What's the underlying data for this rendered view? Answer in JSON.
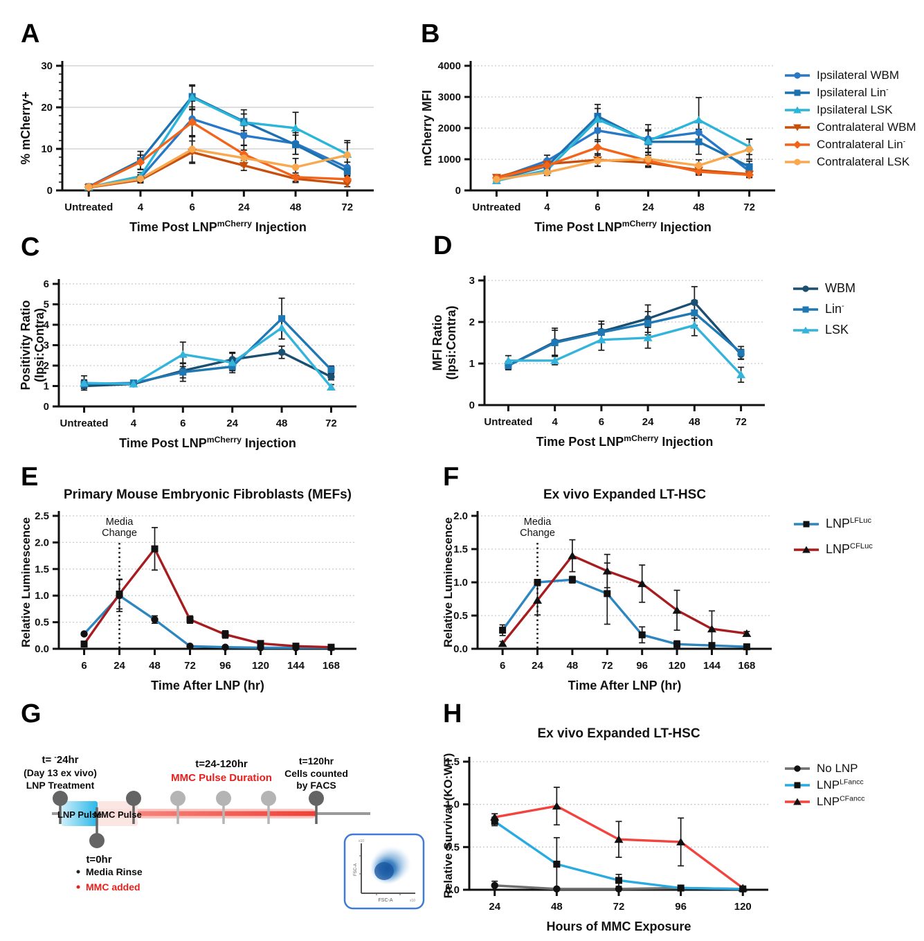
{
  "panels": [
    {
      "id": "A",
      "letter": "A"
    },
    {
      "id": "B",
      "letter": "B"
    },
    {
      "id": "C",
      "letter": "C"
    },
    {
      "id": "D",
      "letter": "D"
    },
    {
      "id": "E",
      "letter": "E"
    },
    {
      "id": "F",
      "letter": "F"
    },
    {
      "id": "G",
      "letter": "G"
    },
    {
      "id": "H",
      "letter": "H"
    }
  ],
  "chart_data": [
    {
      "id": "A",
      "type": "line",
      "title": null,
      "categories": [
        "Untreated",
        "4",
        "6",
        "24",
        "48",
        "72"
      ],
      "xlabel": [
        {
          "t": "Time Post LNP"
        },
        {
          "t": "mCherry",
          "sup": true
        },
        {
          "t": " Injection"
        }
      ],
      "ylabel": [
        "% mCherry+"
      ],
      "ylim": [
        0,
        30
      ],
      "yticks": [
        0,
        10,
        20,
        30
      ],
      "ytick_format": "int",
      "grid": "solid",
      "minor_step": 2,
      "legend": false,
      "series": [
        {
          "name": [
            {
              "t": "Ipsilateral WBM"
            }
          ],
          "color": "#2878C8",
          "marker": "circle",
          "values": [
            0.8,
            3.0,
            17.2,
            13.2,
            11.3,
            5.5
          ],
          "errors": [
            0.4,
            0.8,
            4.3,
            2.4,
            2.6,
            1.3
          ]
        },
        {
          "name": [
            {
              "t": "Ipsilateral Lin"
            },
            {
              "t": "-",
              "sup": true
            }
          ],
          "color": "#1C72B0",
          "marker": "square",
          "values": [
            0.9,
            7.2,
            22.6,
            16.6,
            11.0,
            4.6
          ],
          "errors": [
            0.3,
            2.2,
            2.5,
            2.8,
            2.3,
            1.2
          ]
        },
        {
          "name": [
            {
              "t": "Ipsilateral LSK"
            }
          ],
          "color": "#2BB5D9",
          "marker": "triangle",
          "values": [
            0.8,
            3.4,
            22.4,
            16.4,
            15.0,
            8.7
          ],
          "errors": [
            0.3,
            0.9,
            3.0,
            2.0,
            3.8,
            3.3
          ]
        },
        {
          "name": [
            {
              "t": "Contralateral WBM"
            }
          ],
          "color": "#C8500D",
          "marker": "triangle-down",
          "values": [
            0.7,
            2.5,
            9.2,
            6.0,
            2.8,
            1.6
          ],
          "errors": [
            0.3,
            0.7,
            2.7,
            1.2,
            0.9,
            0.7
          ]
        },
        {
          "name": [
            {
              "t": "Contralateral Lin"
            },
            {
              "t": "-",
              "sup": true
            }
          ],
          "color": "#F26419",
          "marker": "diamond",
          "values": [
            0.8,
            6.8,
            16.4,
            8.7,
            3.2,
            2.7
          ],
          "errors": [
            0.3,
            1.7,
            3.2,
            2.2,
            1.0,
            0.9
          ]
        },
        {
          "name": [
            {
              "t": "Contralateral LSK"
            }
          ],
          "color": "#F8A84E",
          "marker": "circle",
          "values": [
            0.8,
            2.8,
            9.9,
            7.8,
            5.6,
            8.5
          ],
          "errors": [
            0.3,
            0.8,
            3.1,
            1.9,
            2.1,
            3.0
          ]
        }
      ]
    },
    {
      "id": "B",
      "type": "line",
      "title": null,
      "categories": [
        "Untreated",
        "4",
        "6",
        "24",
        "48",
        "72"
      ],
      "xlabel": [
        {
          "t": "Time Post LNP"
        },
        {
          "t": "mCherry",
          "sup": true
        },
        {
          "t": " Injection"
        }
      ],
      "ylabel": [
        "mCherry MFI"
      ],
      "ylim": [
        0,
        4000
      ],
      "yticks": [
        0,
        1000,
        2000,
        3000,
        4000
      ],
      "ytick_format": "int",
      "grid": "dashed",
      "legend": true,
      "series": [
        {
          "name": [
            {
              "t": "Ipsilateral WBM"
            }
          ],
          "color": "#2878C8",
          "marker": "circle",
          "values": [
            380,
            950,
            1920,
            1650,
            1860,
            620
          ],
          "errors": [
            60,
            180,
            350,
            300,
            380,
            130
          ]
        },
        {
          "name": [
            {
              "t": "Ipsilateral Lin"
            },
            {
              "t": "-",
              "sup": true
            }
          ],
          "color": "#1C72B0",
          "marker": "square",
          "values": [
            350,
            780,
            2380,
            1560,
            1560,
            760
          ],
          "errors": [
            60,
            140,
            380,
            350,
            400,
            180
          ]
        },
        {
          "name": [
            {
              "t": "Ipsilateral LSK"
            }
          ],
          "color": "#2BB5D9",
          "marker": "triangle",
          "values": [
            310,
            650,
            2280,
            1590,
            2260,
            1400
          ],
          "errors": [
            60,
            120,
            350,
            520,
            720,
            250
          ]
        },
        {
          "name": [
            {
              "t": "Contralateral WBM"
            }
          ],
          "color": "#C8500D",
          "marker": "triangle-down",
          "values": [
            420,
            850,
            980,
            890,
            650,
            520
          ],
          "errors": [
            60,
            140,
            200,
            150,
            120,
            90
          ]
        },
        {
          "name": [
            {
              "t": "Contralateral Lin"
            },
            {
              "t": "-",
              "sup": true
            }
          ],
          "color": "#F26419",
          "marker": "diamond",
          "values": [
            400,
            800,
            1380,
            950,
            600,
            500
          ],
          "errors": [
            60,
            140,
            250,
            180,
            110,
            90
          ]
        },
        {
          "name": [
            {
              "t": "Contralateral LSK"
            }
          ],
          "color": "#F8A84E",
          "marker": "circle",
          "values": [
            350,
            580,
            950,
            1010,
            800,
            1320
          ],
          "errors": [
            60,
            100,
            180,
            220,
            180,
            320
          ]
        }
      ]
    },
    {
      "id": "C",
      "type": "line",
      "title": null,
      "categories": [
        "Untreated",
        "4",
        "6",
        "24",
        "48",
        "72"
      ],
      "xlabel": [
        {
          "t": "Time Post LNP"
        },
        {
          "t": "mCherry",
          "sup": true
        },
        {
          "t": " Injection"
        }
      ],
      "ylabel": [
        "Positivity Ratio",
        "(Ipsi:Contra)"
      ],
      "ylim": [
        0,
        6
      ],
      "yticks": [
        0,
        1,
        2,
        3,
        4,
        5,
        6
      ],
      "ytick_format": "int",
      "grid": "dashed",
      "legend": false,
      "series": [
        {
          "name": [
            {
              "t": "WBM"
            }
          ],
          "color": "#1B4F72",
          "marker": "circle",
          "values": [
            1.0,
            1.1,
            1.75,
            2.3,
            2.65,
            1.45
          ],
          "errors": [
            0.12,
            0.1,
            0.35,
            0.3,
            0.3,
            0.15
          ]
        },
        {
          "name": [
            {
              "t": "Lin"
            },
            {
              "t": "-",
              "sup": true
            }
          ],
          "color": "#1F78B4",
          "marker": "square",
          "values": [
            1.1,
            1.15,
            1.68,
            1.95,
            4.3,
            1.8
          ],
          "errors": [
            0.2,
            0.12,
            0.45,
            0.2,
            1.0,
            0.18
          ]
        },
        {
          "name": [
            {
              "t": "LSK"
            }
          ],
          "color": "#35B4DB",
          "marker": "triangle",
          "values": [
            1.15,
            1.1,
            2.55,
            2.15,
            3.85,
            0.95
          ],
          "errors": [
            0.35,
            0.12,
            0.6,
            0.5,
            0.55,
            0.12
          ]
        }
      ]
    },
    {
      "id": "D",
      "type": "line",
      "title": null,
      "categories": [
        "Untreated",
        "4",
        "6",
        "24",
        "48",
        "72"
      ],
      "xlabel": [
        {
          "t": "Time Post LNP"
        },
        {
          "t": "mCherry",
          "sup": true
        },
        {
          "t": " Injection"
        }
      ],
      "ylabel": [
        "MFI Ratio",
        "(Ipsi:Contra)"
      ],
      "ylim": [
        0,
        3
      ],
      "yticks": [
        0,
        1,
        2,
        3
      ],
      "ytick_format": "int",
      "grid": "dashed",
      "legend": true,
      "series": [
        {
          "name": [
            {
              "t": "WBM"
            }
          ],
          "color": "#1B4F72",
          "marker": "circle",
          "values": [
            0.95,
            1.52,
            1.77,
            2.08,
            2.47,
            1.22
          ],
          "errors": [
            0.1,
            0.33,
            0.25,
            0.33,
            0.38,
            0.12
          ]
        },
        {
          "name": [
            {
              "t": "Lin"
            },
            {
              "t": "-",
              "sup": true
            }
          ],
          "color": "#1F78B4",
          "marker": "square",
          "values": [
            0.95,
            1.5,
            1.75,
            1.97,
            2.22,
            1.26
          ],
          "errors": [
            0.08,
            0.3,
            0.2,
            0.28,
            0.3,
            0.15
          ]
        },
        {
          "name": [
            {
              "t": "LSK"
            }
          ],
          "color": "#35B4DB",
          "marker": "triangle",
          "values": [
            1.07,
            1.07,
            1.57,
            1.62,
            1.92,
            0.73
          ],
          "errors": [
            0.12,
            0.1,
            0.25,
            0.25,
            0.25,
            0.18
          ]
        }
      ]
    },
    {
      "id": "E",
      "type": "line",
      "title": "Primary Mouse Embryonic Fibroblasts (MEFs)",
      "categories": [
        "6",
        "24",
        "48",
        "72",
        "96",
        "120",
        "144",
        "168"
      ],
      "xlabel": [
        {
          "t": "Time After LNP (hr)"
        }
      ],
      "ylabel": [
        "Relative Luminescence"
      ],
      "ylim": [
        0,
        2.5
      ],
      "yticks": [
        0,
        0.5,
        1,
        1.5,
        2,
        2.5
      ],
      "ytick_format": "1dp",
      "grid": "dashed",
      "legend": false,
      "vline": {
        "index": 1,
        "label": [
          "Media",
          "Change"
        ]
      },
      "series": [
        {
          "name": [
            {
              "t": "LNP"
            },
            {
              "t": "LFLuc",
              "sup": true
            }
          ],
          "color": "#2E86C1",
          "marker": "circle",
          "marker_color": "#111111",
          "values": [
            0.28,
            1.0,
            0.55,
            0.05,
            0.03,
            0.02,
            0.02,
            0.02
          ],
          "errors": [
            0.03,
            0.3,
            0.07,
            0.02,
            0.01,
            0.01,
            0.01,
            0.01
          ]
        },
        {
          "name": [
            {
              "t": "LNP"
            },
            {
              "t": "CFLuc",
              "sup": true
            }
          ],
          "color": "#A61C1F",
          "marker": "square",
          "marker_color": "#111111",
          "values": [
            0.09,
            1.03,
            1.88,
            0.55,
            0.27,
            0.1,
            0.05,
            0.03
          ],
          "errors": [
            0.03,
            0.28,
            0.4,
            0.07,
            0.07,
            0.03,
            0.02,
            0.01
          ]
        }
      ]
    },
    {
      "id": "F",
      "type": "line",
      "title": "Ex vivo Expanded LT-HSC",
      "categories": [
        "6",
        "24",
        "48",
        "72",
        "96",
        "120",
        "144",
        "168"
      ],
      "xlabel": [
        {
          "t": "Time After LNP (hr)"
        }
      ],
      "ylabel": [
        "Relative Luminescence"
      ],
      "ylim": [
        0,
        2
      ],
      "yticks": [
        0,
        0.5,
        1,
        1.5,
        2
      ],
      "ytick_format": "1dp",
      "grid": "dashed",
      "legend": true,
      "vline": {
        "index": 1,
        "label": [
          "Media",
          "Change"
        ]
      },
      "series": [
        {
          "name": [
            {
              "t": "LNP"
            },
            {
              "t": "LFLuc",
              "sup": true
            }
          ],
          "color": "#2E86C1",
          "marker": "square",
          "marker_color": "#111111",
          "values": [
            0.28,
            1.0,
            1.04,
            0.83,
            0.21,
            0.07,
            0.05,
            0.03
          ],
          "errors": [
            0.08,
            0.04,
            0.05,
            0.46,
            0.12,
            0.05,
            0.04,
            0.02
          ]
        },
        {
          "name": [
            {
              "t": "LNP"
            },
            {
              "t": "CFLuc",
              "sup": true
            }
          ],
          "color": "#A61C1F",
          "marker": "triangle",
          "marker_color": "#111111",
          "values": [
            0.08,
            0.73,
            1.4,
            1.17,
            0.98,
            0.58,
            0.3,
            0.23
          ],
          "errors": [
            0.03,
            0.22,
            0.24,
            0.25,
            0.28,
            0.3,
            0.27,
            0.03
          ]
        }
      ]
    },
    {
      "id": "H",
      "type": "line",
      "title": "Ex vivo Expanded LT-HSC",
      "categories": [
        "24",
        "48",
        "72",
        "96",
        "120"
      ],
      "xlabel": [
        {
          "t": "Hours of MMC Exposure"
        }
      ],
      "ylabel": [
        "Relative Survival (KO:WT)"
      ],
      "ylim": [
        0,
        1.5
      ],
      "yticks": [
        0,
        0.5,
        1,
        1.5
      ],
      "ytick_format": "1dp",
      "grid": "dashed",
      "legend": true,
      "series": [
        {
          "name": [
            {
              "t": "No LNP"
            }
          ],
          "color": "#6F6F6F",
          "marker": "circle",
          "marker_color": "#111111",
          "values": [
            0.05,
            0.01,
            0.01,
            0.02,
            0.01
          ],
          "errors": [
            0.05,
            0.01,
            0.01,
            0.01,
            0.01
          ]
        },
        {
          "name": [
            {
              "t": "LNP"
            },
            {
              "t": "LFancc",
              "sup": true
            }
          ],
          "color": "#29ABE2",
          "marker": "square",
          "marker_color": "#111111",
          "values": [
            0.8,
            0.3,
            0.11,
            0.02,
            0.01
          ],
          "errors": [
            0.05,
            0.31,
            0.07,
            0.02,
            0.01
          ]
        },
        {
          "name": [
            {
              "t": "LNP"
            },
            {
              "t": "CFancc",
              "sup": true
            }
          ],
          "color": "#F4433E",
          "marker": "triangle",
          "marker_color": "#111111",
          "values": [
            0.85,
            0.98,
            0.59,
            0.56,
            0.02
          ],
          "errors": [
            0.04,
            0.22,
            0.21,
            0.28,
            0.01
          ]
        }
      ]
    }
  ],
  "schematic": {
    "panel": "G",
    "left_label": [
      [
        {
          "t": "t= "
        },
        {
          "t": "-",
          "sup": true
        },
        {
          "t": "24hr"
        }
      ],
      "(Day 13 ex vivo)",
      "LNP Treatment"
    ],
    "mid_label_black": "t=24-120hr",
    "mid_label_red": "MMC Pulse Duration",
    "right_label": [
      "t=120hr",
      "Cells counted",
      "by FACS"
    ],
    "lnp_pulse": "LNP Pulse",
    "mmc_pulse": "MMC Pulse",
    "t0_label": "t=0hr",
    "t0_bullet_black": "Media Rinse",
    "t0_bullet_red": "MMC added",
    "facs_xlabel": "FSC-A",
    "facs_ylabel": "FSC-A",
    "red": "#E8201C"
  }
}
